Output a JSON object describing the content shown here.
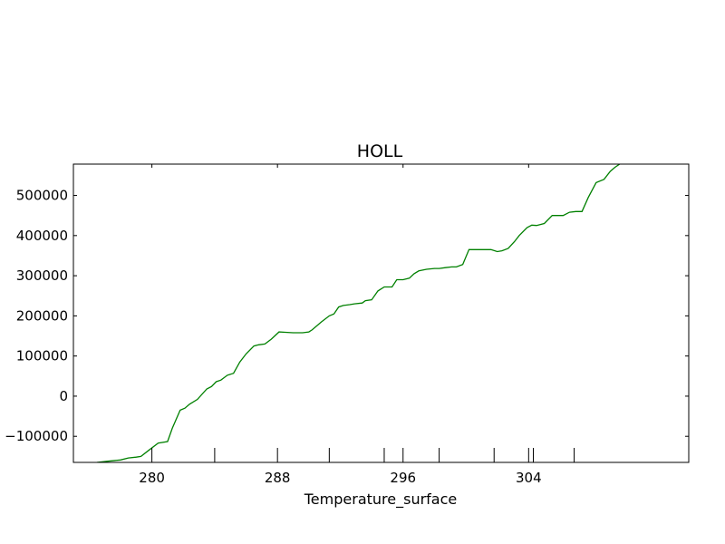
{
  "chart_data": {
    "type": "line",
    "title": "HOLL",
    "xlabel": "Temperature_surface",
    "ylabel": "",
    "xlim": [
      275.0,
      314.2
    ],
    "ylim": [
      -165000,
      578000
    ],
    "x_ticks": [
      280,
      288,
      296,
      304
    ],
    "y_ticks": [
      -100000,
      0,
      100000,
      200000,
      300000,
      400000,
      500000
    ],
    "y_tick_labels": [
      "−100000",
      "0",
      "100000",
      "200000",
      "300000",
      "400000",
      "500000"
    ],
    "grid": false,
    "legend": "none",
    "series_color": "#008000",
    "extra_bottom_ticks_x": [
      284,
      291.3,
      294.8,
      298.3,
      301.8,
      304.3,
      306.9
    ],
    "series": [
      {
        "x": [
          276.5,
          277.2,
          278.0,
          278.5,
          279.0,
          279.3,
          279.8,
          280.4,
          281.0,
          281.3,
          281.8,
          282.1,
          282.4,
          282.9,
          283.5,
          283.8,
          284.1,
          284.4,
          284.8,
          285.2,
          285.6,
          286.0,
          286.5,
          286.8,
          287.2,
          287.6,
          288.1,
          288.5,
          289.0,
          289.3,
          289.6,
          290.0,
          290.2,
          290.8,
          291.3,
          291.6,
          291.9,
          292.2,
          292.6,
          292.9,
          293.4,
          293.6,
          294.0,
          294.4,
          294.8,
          295.3,
          295.6,
          296.0,
          296.4,
          296.7,
          297.0,
          297.5,
          298.0,
          298.3,
          298.7,
          299.1,
          299.4,
          299.8,
          300.2,
          300.6,
          300.9,
          301.3,
          301.6,
          302.0,
          302.3,
          302.7,
          303.1,
          303.4,
          303.9,
          304.2,
          304.5,
          305.0,
          305.5,
          305.9,
          306.2,
          306.6,
          307.0,
          307.4,
          307.8,
          308.3,
          308.8,
          309.2,
          309.5,
          309.8
        ],
        "y": [
          -165000,
          -162000,
          -159000,
          -154000,
          -152000,
          -150000,
          -135000,
          -117000,
          -113000,
          -80000,
          -35000,
          -30000,
          -20000,
          -8000,
          18000,
          24000,
          36000,
          40000,
          52000,
          57000,
          85000,
          105000,
          125000,
          128000,
          130000,
          142000,
          160000,
          159000,
          158000,
          158000,
          158000,
          160000,
          165000,
          185000,
          200000,
          205000,
          222000,
          226000,
          228000,
          230000,
          232000,
          238000,
          240000,
          262000,
          272000,
          272000,
          290000,
          290000,
          294000,
          305000,
          312000,
          316000,
          318000,
          318000,
          320000,
          322000,
          322000,
          328000,
          365000,
          365000,
          365000,
          365000,
          365000,
          360000,
          362000,
          368000,
          385000,
          400000,
          420000,
          426000,
          425000,
          430000,
          450000,
          450000,
          450000,
          458000,
          460000,
          460000,
          495000,
          532000,
          540000,
          560000,
          570000,
          578000
        ]
      }
    ]
  }
}
